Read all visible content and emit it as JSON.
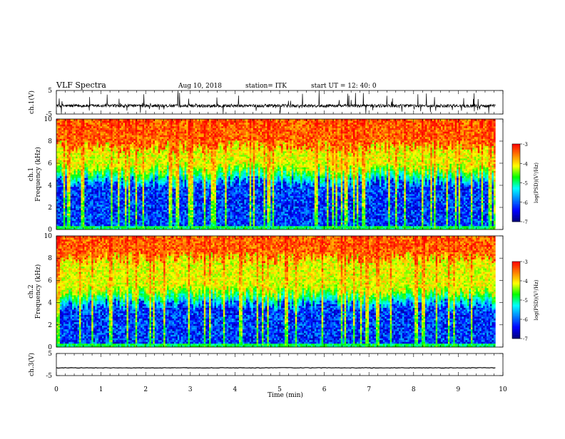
{
  "header": {
    "title": "VLF Spectra",
    "date": "Aug 10, 2018",
    "station": "station= ITK",
    "start": "start UT = 12: 40: 0"
  },
  "chart_data": [
    {
      "type": "line",
      "panel": "ch1-waveform",
      "ylabel": "ch.1(V)",
      "ylim": [
        -5,
        5
      ],
      "y_ticks": [
        "5",
        "-5"
      ],
      "baseline": -1.5,
      "noise_band": [
        -2.5,
        0.5
      ],
      "spike_range": [
        -5,
        5
      ]
    },
    {
      "type": "heatmap",
      "panel": "ch1-spectrogram",
      "ylabel_prefix": "ch.1",
      "ylabel": "Frequency (kHz)",
      "ylim": [
        0,
        10
      ],
      "y_ticks": [
        "0",
        "2",
        "4",
        "6",
        "8",
        "10"
      ],
      "mean_yellow_boundary_khz": 5.5,
      "mean_red_boundary_khz": 7.5,
      "colorbar": {
        "label": "log(PSD)(V²/Hz)",
        "range": [
          -7,
          -3
        ],
        "ticks": [
          "-3",
          "-4",
          "-5",
          "-6",
          "-7"
        ]
      }
    },
    {
      "type": "heatmap",
      "panel": "ch2-spectrogram",
      "ylabel_prefix": "ch.2",
      "ylabel": "Frequency (kHz)",
      "ylim": [
        0,
        10
      ],
      "y_ticks": [
        "0",
        "2",
        "4",
        "6",
        "8",
        "10"
      ],
      "mean_yellow_boundary_khz": 5.0,
      "mean_red_boundary_khz": 8.0,
      "colorbar": {
        "label": "log(PSD)(V²/Hz)",
        "range": [
          -7,
          -3
        ],
        "ticks": [
          "-3",
          "-4",
          "-5",
          "-6",
          "-7"
        ]
      }
    },
    {
      "type": "line",
      "panel": "ch3-waveform",
      "ylabel": "ch.3(V)",
      "ylim": [
        -5,
        5
      ],
      "y_ticks": [
        "5",
        "-5"
      ],
      "baseline": -1.5
    }
  ],
  "x_axis": {
    "label": "Time (min)",
    "range": [
      0,
      10
    ],
    "data_end": 9.83,
    "ticks": [
      "0",
      "1",
      "2",
      "3",
      "4",
      "5",
      "6",
      "7",
      "8",
      "9",
      "10"
    ]
  },
  "colors": {
    "waveform": "#000000",
    "colormap": [
      "#00007a",
      "#0000ff",
      "#0080ff",
      "#00ffff",
      "#00ff00",
      "#ffff00",
      "#ff8000",
      "#ff0000"
    ]
  }
}
